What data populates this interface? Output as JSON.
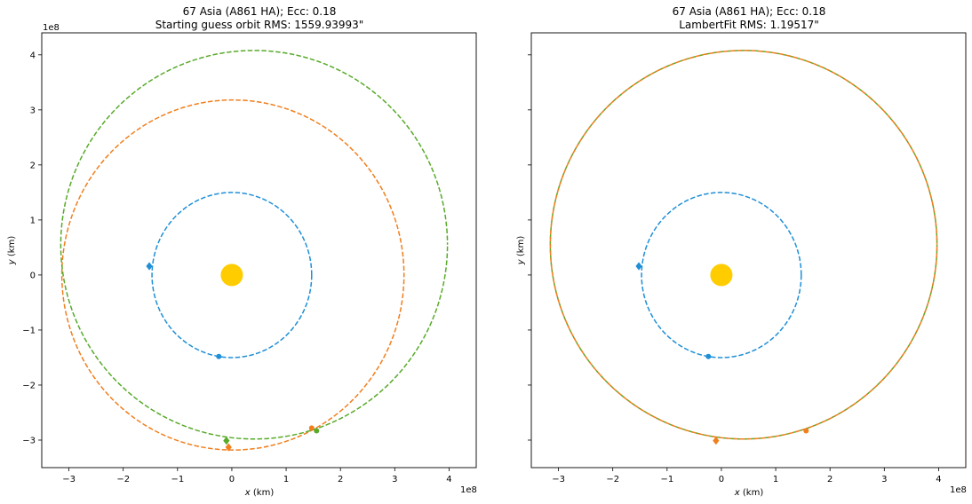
{
  "chart_data": [
    {
      "type": "scatter",
      "title": "67 Asia (A861 HA); Ecc: 0.18",
      "subtitle": "Starting guess orbit RMS: 1559.93993\"",
      "xlabel": "$x$ (km)",
      "ylabel": "$y$ (km)",
      "xlabel_text": {
        "var": "x",
        "unit": " (km)"
      },
      "ylabel_text": {
        "var": "y",
        "unit": " (km)"
      },
      "xlim": [
        -3.5,
        4.5
      ],
      "ylim": [
        -3.5,
        4.4
      ],
      "scale_factor": "1e8",
      "xticks": [
        -3,
        -2,
        -1,
        0,
        1,
        2,
        3,
        4
      ],
      "xtick_labels": [
        "−3",
        "−2",
        "−1",
        "0",
        "1",
        "2",
        "3",
        "4"
      ],
      "yticks": [
        -3,
        -2,
        -1,
        0,
        1,
        2,
        3,
        4
      ],
      "ytick_labels": [
        "−3",
        "−2",
        "−1",
        "0",
        "1",
        "2",
        "3",
        "4"
      ],
      "show_ytick_labels": true,
      "grid": false,
      "sun": {
        "x": 0,
        "y": 0,
        "color": "#ffcc00"
      },
      "orbits": [
        {
          "color": "#1f8fd6",
          "center": [
            0,
            0
          ],
          "rx": 1.47,
          "ry": 1.5
        },
        {
          "color": "#f07f1e",
          "center": [
            0.02,
            0
          ],
          "rx": 3.15,
          "ry": 3.18
        },
        {
          "color": "#58aa2a",
          "center": [
            0.41,
            0.55
          ],
          "rx": 3.56,
          "ry": 3.53
        }
      ],
      "markers": [
        {
          "color": "#1f8fd6",
          "shape": "diamond",
          "x": -1.52,
          "y": 0.16
        },
        {
          "color": "#1f8fd6",
          "shape": "circle",
          "x": -0.24,
          "y": -1.48
        },
        {
          "color": "#f07f1e",
          "shape": "diamond",
          "x": -0.06,
          "y": -3.13
        },
        {
          "color": "#f07f1e",
          "shape": "circle",
          "x": 1.47,
          "y": -2.78
        },
        {
          "color": "#58aa2a",
          "shape": "diamond",
          "x": -0.1,
          "y": -3.01
        },
        {
          "color": "#58aa2a",
          "shape": "circle",
          "x": 1.56,
          "y": -2.83
        }
      ]
    },
    {
      "type": "scatter",
      "title": "67 Asia (A861 HA); Ecc: 0.18",
      "subtitle": "LambertFit RMS: 1.19517\"",
      "xlabel": "$x$ (km)",
      "ylabel": "$y$ (km)",
      "xlabel_text": {
        "var": "x",
        "unit": " (km)"
      },
      "ylabel_text": {
        "var": "y",
        "unit": " (km)"
      },
      "xlim": [
        -3.5,
        4.5
      ],
      "ylim": [
        -3.5,
        4.4
      ],
      "scale_factor": "1e8",
      "xticks": [
        -3,
        -2,
        -1,
        0,
        1,
        2,
        3,
        4
      ],
      "xtick_labels": [
        "−3",
        "−2",
        "−1",
        "0",
        "1",
        "2",
        "3",
        "4"
      ],
      "yticks": [
        -3,
        -2,
        -1,
        0,
        1,
        2,
        3,
        4
      ],
      "ytick_labels": [],
      "show_ytick_labels": false,
      "grid": false,
      "sun": {
        "x": 0,
        "y": 0,
        "color": "#ffcc00"
      },
      "orbits": [
        {
          "color": "#1f8fd6",
          "center": [
            0,
            0
          ],
          "rx": 1.47,
          "ry": 1.5
        },
        {
          "color": "#58aa2a",
          "center": [
            0.41,
            0.55
          ],
          "rx": 3.56,
          "ry": 3.53
        },
        {
          "color": "#f07f1e",
          "center": [
            0.41,
            0.55
          ],
          "rx": 3.56,
          "ry": 3.53
        }
      ],
      "markers": [
        {
          "color": "#1f8fd6",
          "shape": "diamond",
          "x": -1.52,
          "y": 0.16
        },
        {
          "color": "#1f8fd6",
          "shape": "circle",
          "x": -0.24,
          "y": -1.48
        },
        {
          "color": "#f07f1e",
          "shape": "diamond",
          "x": -0.1,
          "y": -3.01
        },
        {
          "color": "#f07f1e",
          "shape": "circle",
          "x": 1.56,
          "y": -2.83
        }
      ]
    }
  ]
}
